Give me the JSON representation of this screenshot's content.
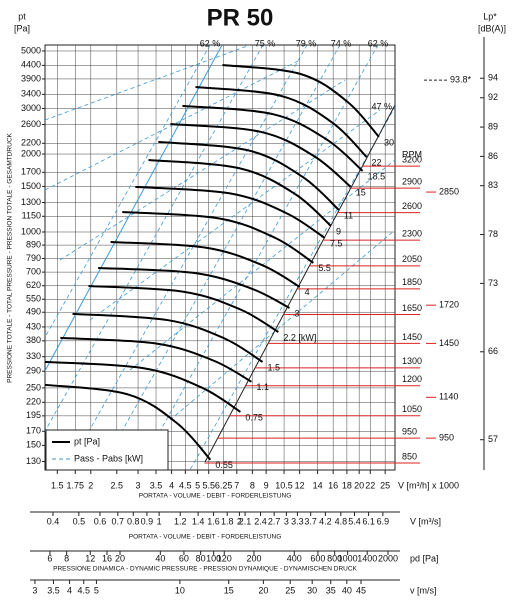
{
  "chart_data": {
    "type": "fan-curve",
    "title": "PR 50",
    "y_label_top": "pt",
    "y_unit": "[Pa]",
    "y_axis_title": "PRESSIONE TOTALE - TOTAL PRESSURE - PRESSION TOTALE - GESAMTDRUCK",
    "x_unit": "V [m³/h] x 1000",
    "x_axis_title": "PORTATA - VOLUME - DEBIT - FORDERLEISTUNG",
    "log_x": true,
    "log_y": true,
    "grid": true,
    "xlim": [
      1.35,
      27.2
    ],
    "xticks": [
      1.5,
      1.75,
      2,
      2.5,
      3,
      3.5,
      4,
      4.5,
      5,
      5.5,
      6.25,
      7,
      8,
      9,
      10.5,
      12,
      14,
      16,
      18,
      20,
      22,
      25
    ],
    "ylim": [
      120.5,
      5273
    ],
    "yticks": [
      5000,
      4400,
      3900,
      3400,
      3000,
      2600,
      2200,
      2000,
      1700,
      1500,
      1300,
      1150,
      1000,
      890,
      790,
      700,
      620,
      550,
      490,
      430,
      380,
      330,
      290,
      250,
      220,
      195,
      170,
      150,
      130
    ],
    "curve_color": "#000000",
    "helper_color": "#3a9ad9",
    "power_unit": "[kW]",
    "curves": [
      {
        "power": 30,
        "x": [
          6.19,
          12.1,
          18.1,
          23.7
        ],
        "y": [
          4416,
          4075,
          3181,
          2328
        ]
      },
      {
        "power": 22,
        "x": [
          4.91,
          10.2,
          15.9,
          21.3
        ],
        "y": [
          3631,
          3357,
          2642,
          1950
        ]
      },
      {
        "power": 18.5,
        "x": [
          4.39,
          9.51,
          15.1,
          20.6
        ],
        "y": [
          3069,
          2853,
          2280,
          1721
        ]
      },
      {
        "power": 15,
        "x": [
          3.96,
          8.58,
          13.6,
          18.6
        ],
        "y": [
          2612,
          2437,
          1961,
          1493
        ]
      },
      {
        "power": 11,
        "x": [
          3.57,
          7.74,
          12.3,
          16.8
        ],
        "y": [
          2228,
          2065,
          1633,
          1217
        ]
      },
      {
        "power": 9,
        "x": [
          3.28,
          7.16,
          11.5,
          15.7
        ],
        "y": [
          1897,
          1763,
          1405,
          1055
        ]
      },
      {
        "power": 7.5,
        "x": [
          2.93,
          6.6,
          10.7,
          14.9
        ],
        "y": [
          1493,
          1410,
          1183,
          948
        ]
      },
      {
        "power": 5.5,
        "x": [
          2.62,
          5.96,
          9.75,
          13.5
        ],
        "y": [
          1195,
          1130,
          948,
          760
        ]
      },
      {
        "power": 4,
        "x": [
          2.37,
          5.32,
          8.67,
          12.0
        ],
        "y": [
          915,
          871,
          746,
          614
        ]
      },
      {
        "power": 3,
        "x": [
          2.13,
          4.84,
          7.93,
          11.0
        ],
        "y": [
          726,
          695,
          605,
          509
        ]
      },
      {
        "power": 2.2,
        "x": [
          1.96,
          4.43,
          7.22,
          10.0
        ],
        "y": [
          619,
          588,
          502,
          411
        ]
      },
      {
        "power": 1.5,
        "x": [
          1.71,
          3.86,
          6.3,
          8.73
        ],
        "y": [
          483,
          457,
          388,
          315
        ]
      },
      {
        "power": 1.1,
        "x": [
          1.54,
          3.5,
          5.72,
          7.94
        ],
        "y": [
          390,
          371,
          319,
          264
        ]
      },
      {
        "power": 0.75,
        "x": [
          1.35,
          3.13,
          5.17,
          7.22
        ],
        "y": [
          315,
          298,
          251,
          202
        ]
      },
      {
        "power": 0.55,
        "x": [
          1.35,
          2.75,
          4.21,
          5.58
        ],
        "y": [
          257,
          236,
          182,
          132
        ]
      }
    ],
    "efficiency_labels": [
      "62 %",
      "75 %",
      "79 %",
      "74 %",
      "62 %",
      "47 %"
    ],
    "legend": {
      "entries": [
        "pt [Pa]",
        "Pass - Pabs [kW]"
      ],
      "position": "lower left"
    },
    "rpm": {
      "label": "RPM",
      "color": "#dd2222",
      "lim": [
        824,
        5495
      ],
      "ticks": [
        3200,
        2900,
        2600,
        2300,
        2050,
        1850,
        1650,
        1450,
        1300,
        1200,
        1050,
        950,
        850
      ],
      "motor_ticks": [
        2850,
        1720,
        1450,
        1140,
        950
      ]
    },
    "lp": {
      "label": "Lp*",
      "unit": "[dB(A)]",
      "lim": [
        53.9,
        97.4
      ],
      "ticks": [
        94,
        92,
        89,
        86,
        83,
        78,
        73,
        66,
        57
      ],
      "annotation": {
        "value": 93.8,
        "label": "93.8*"
      }
    },
    "secondary_axes": [
      {
        "unit": "V [m³/s]",
        "title": "PORTATA - VOLUME - DEBIT - FORDERLEISTUNG",
        "xlim": [
          0.328,
          8.0
        ],
        "xticks": [
          0.4,
          0.5,
          0.6,
          0.7,
          0.8,
          0.9,
          1,
          1.2,
          1.4,
          1.6,
          1.8,
          2,
          2.1,
          2.4,
          2.7,
          3,
          3.3,
          3.7,
          4.2,
          4.8,
          5.4,
          6.1,
          6.9
        ]
      },
      {
        "unit": "pd [Pa]",
        "title": "PRESSIONE DINAMICA - DYNAMIC PRESSURE - PRESSION DYNAMIQUE - DYNAMISCHEN DRUCK",
        "xlim": [
          4.26,
          2459
        ],
        "xticks": [
          6,
          8,
          12,
          16,
          20,
          40,
          60,
          80,
          100,
          120,
          200,
          400,
          600,
          800,
          1000,
          1400,
          2000
        ]
      },
      {
        "unit": "v [m/s]",
        "xlim": [
          2.88,
          62.2
        ],
        "xticks": [
          3,
          3.5,
          4,
          4.5,
          5,
          10,
          15,
          20,
          25,
          30,
          35,
          40,
          45
        ]
      }
    ]
  }
}
